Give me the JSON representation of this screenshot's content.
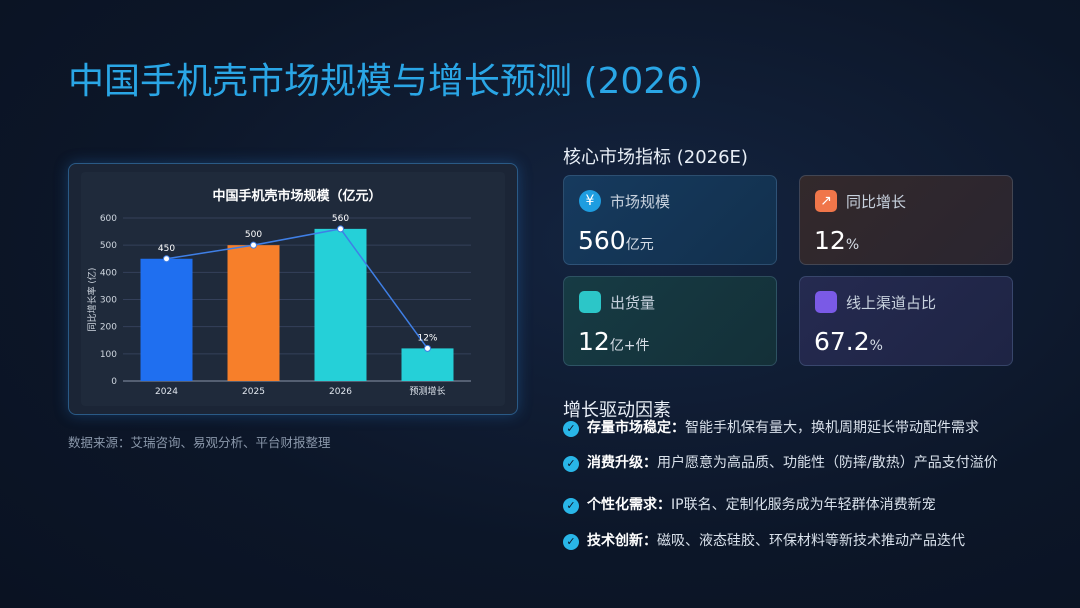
{
  "title": "中国手机壳市场规模与增长预测 (2026)",
  "chart_data": {
    "type": "bar",
    "title": "中国手机壳市场规模（亿元）",
    "y_label": "同比增长率 (亿)",
    "categories": [
      "2024",
      "2025",
      "2026",
      "预测增长"
    ],
    "values": [
      450,
      500,
      560,
      120
    ],
    "colors": [
      "#1f6ff0",
      "#f77f2a",
      "#25d0d8",
      "#25d0d8"
    ],
    "line_color": "#3f7fe6",
    "annotation": "12%",
    "ylim": [
      0,
      600
    ],
    "yticks": [
      0,
      100,
      200,
      300,
      400,
      500,
      600
    ],
    "grid": true
  },
  "source": "数据来源：艾瑞咨询、易观分析、平台财报整理",
  "metrics_title": "核心市场指标 (2026E)",
  "metrics": [
    {
      "icon": "¥",
      "label": "市场规模",
      "value": 560,
      "unit": "亿元"
    },
    {
      "icon": "↗",
      "label": "同比增长",
      "value": 12,
      "unit": "%"
    },
    {
      "icon": "",
      "label": "出货量",
      "value": 12,
      "unit": "亿+件"
    },
    {
      "icon": "",
      "label": "线上渠道占比",
      "value": 67.2,
      "unit": "%"
    }
  ],
  "drivers_title": "增长驱动因素",
  "drivers": [
    {
      "term": "存量市场稳定：",
      "text": "智能手机保有量大，换机周期延长带动配件需求"
    },
    {
      "term": "消费升级：",
      "text": "用户愿意为高品质、功能性（防摔/散热）产品支付溢价"
    },
    {
      "term": "个性化需求：",
      "text": "IP联名、定制化服务成为年轻群体消费新宠"
    },
    {
      "term": "技术创新：",
      "text": "磁吸、液态硅胶、环保材料等新技术推动产品迭代"
    }
  ]
}
